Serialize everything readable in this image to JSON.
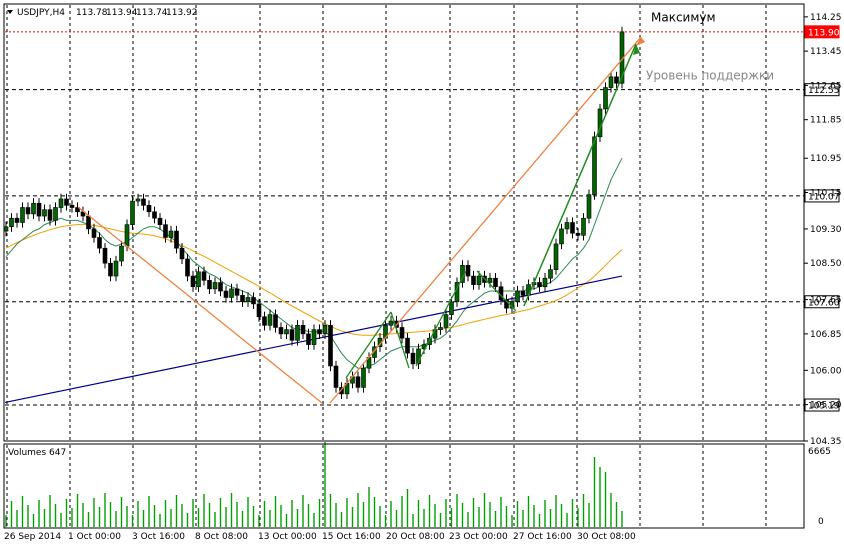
{
  "chart_data": {
    "type": "candlestick",
    "symbol_header": "USDJPY,H4",
    "ohlc_header": [
      "113.78",
      "113.94",
      "113.74",
      "113.92"
    ],
    "volume_label": "Volumes 647",
    "ylim": [
      104.35,
      114.55
    ],
    "y_ticks": [
      "114.25",
      "113.45",
      "112.65",
      "111.85",
      "110.95",
      "110.15",
      "109.30",
      "108.50",
      "107.65",
      "106.85",
      "106.00",
      "105.20",
      "104.35"
    ],
    "price_levels": [
      {
        "value": 113.9,
        "label": "113.90",
        "style": "red-dashed-current"
      },
      {
        "value": 112.55,
        "label": "112.55",
        "style": "black-dashed"
      },
      {
        "value": 110.07,
        "label": "110.07",
        "style": "black-dashed"
      },
      {
        "value": 107.6,
        "label": "107.60",
        "style": "black-dashed"
      },
      {
        "value": 105.19,
        "label": "105.19",
        "style": "black-dashed"
      }
    ],
    "annotations": [
      {
        "text": "Максимум",
        "color": "#000000",
        "at_price": 114.1
      },
      {
        "text": "Уровень поддержки",
        "color": "#888888",
        "at_price": 112.7
      }
    ],
    "x_labels": [
      "26 Sep 2014",
      "1 Oct 00:00",
      "3 Oct 16:00",
      "8 Oct 08:00",
      "13 Oct 00:00",
      "15 Oct 16:00",
      "20 Oct 08:00",
      "23 Oct 00:00",
      "27 Oct 16:00",
      "30 Oct 08:00"
    ],
    "volume_axis": {
      "max": 6665,
      "labels": [
        "6665",
        "0"
      ]
    },
    "closes": [
      109.35,
      109.55,
      109.45,
      109.8,
      109.65,
      109.9,
      109.6,
      109.75,
      109.5,
      109.8,
      110.0,
      109.85,
      109.8,
      109.7,
      109.6,
      109.3,
      109.1,
      108.85,
      108.5,
      108.2,
      108.55,
      108.9,
      109.4,
      109.95,
      110.0,
      109.85,
      109.7,
      109.55,
      109.4,
      109.1,
      109.25,
      108.85,
      108.6,
      108.2,
      107.95,
      108.3,
      108.1,
      107.9,
      108.05,
      107.85,
      107.7,
      107.9,
      107.75,
      107.6,
      107.7,
      107.55,
      107.25,
      107.05,
      107.3,
      107.0,
      106.85,
      106.95,
      106.7,
      107.05,
      106.85,
      106.6,
      106.95,
      106.85,
      107.05,
      106.1,
      105.6,
      105.45,
      105.7,
      105.85,
      105.6,
      106.05,
      106.3,
      106.55,
      106.75,
      107.05,
      107.15,
      107.0,
      106.75,
      106.4,
      106.15,
      106.5,
      106.6,
      106.75,
      106.95,
      107.0,
      107.3,
      107.6,
      108.05,
      108.45,
      108.2,
      108.0,
      108.2,
      108.05,
      108.15,
      107.95,
      107.65,
      107.45,
      107.6,
      107.85,
      107.75,
      108.0,
      108.05,
      107.95,
      108.15,
      108.35,
      108.95,
      109.3,
      109.45,
      109.2,
      109.15,
      109.55,
      110.1,
      111.45,
      112.1,
      112.6,
      112.85,
      112.7,
      113.9
    ],
    "ma_fast": [
      108.65,
      108.8,
      108.95,
      109.05,
      109.15,
      109.25,
      109.3,
      109.4,
      109.45,
      109.5,
      109.55,
      109.5,
      109.5,
      109.5,
      109.45,
      109.4,
      109.3,
      109.2,
      109.05,
      108.95,
      108.9,
      108.95,
      109.0,
      109.1,
      109.2,
      109.3,
      109.35,
      109.35,
      109.3,
      109.2,
      109.1,
      109.0,
      108.85,
      108.7,
      108.55,
      108.45,
      108.35,
      108.25,
      108.2,
      108.1,
      108.0,
      107.95,
      107.9,
      107.85,
      107.8,
      107.7,
      107.6,
      107.5,
      107.4,
      107.3,
      107.2,
      107.1,
      107.0,
      106.95,
      106.95,
      106.9,
      106.9,
      106.9,
      106.9,
      106.8,
      106.6,
      106.4,
      106.25,
      106.15,
      106.05,
      106.05,
      106.1,
      106.15,
      106.25,
      106.35,
      106.45,
      106.5,
      106.55,
      106.55,
      106.55,
      106.55,
      106.6,
      106.65,
      106.7,
      106.75,
      106.85,
      107.0,
      107.15,
      107.35,
      107.5,
      107.6,
      107.7,
      107.8,
      107.85,
      107.85,
      107.85,
      107.85,
      107.85,
      107.85,
      107.85,
      107.9,
      107.9,
      107.95,
      108.0,
      108.05,
      108.15,
      108.3,
      108.45,
      108.6,
      108.7,
      108.85,
      109.05,
      109.4,
      109.75,
      110.1,
      110.45,
      110.7,
      110.95
    ],
    "ma_slow": [
      108.85,
      108.92,
      108.98,
      109.04,
      109.1,
      109.15,
      109.2,
      109.24,
      109.28,
      109.32,
      109.35,
      109.37,
      109.39,
      109.4,
      109.4,
      109.4,
      109.38,
      109.36,
      109.33,
      109.3,
      109.27,
      109.24,
      109.22,
      109.2,
      109.19,
      109.18,
      109.16,
      109.14,
      109.11,
      109.07,
      109.02,
      108.97,
      108.91,
      108.85,
      108.79,
      108.72,
      108.66,
      108.59,
      108.52,
      108.45,
      108.38,
      108.31,
      108.24,
      108.17,
      108.1,
      108.03,
      107.96,
      107.88,
      107.81,
      107.73,
      107.65,
      107.57,
      107.5,
      107.43,
      107.36,
      107.29,
      107.22,
      107.15,
      107.09,
      107.03,
      106.97,
      106.92,
      106.88,
      106.85,
      106.83,
      106.82,
      106.82,
      106.82,
      106.83,
      106.84,
      106.85,
      106.86,
      106.87,
      106.88,
      106.89,
      106.9,
      106.91,
      106.92,
      106.94,
      106.96,
      106.98,
      107.0,
      107.03,
      107.06,
      107.1,
      107.13,
      107.16,
      107.19,
      107.22,
      107.25,
      107.28,
      107.3,
      107.33,
      107.36,
      107.39,
      107.42,
      107.46,
      107.5,
      107.54,
      107.58,
      107.63,
      107.69,
      107.76,
      107.84,
      107.92,
      108.0,
      108.09,
      108.2,
      108.32,
      108.45,
      108.58,
      108.7,
      108.82
    ],
    "ma_long": {
      "from": 105.25,
      "to": 108.2
    }
  },
  "colors": {
    "up_candle": "#006400",
    "ma_fast": "#2e8b57",
    "ma_slow": "#f0a000",
    "ma_long": "#00008b",
    "trend_orange": "#f08040",
    "trend_green": "#228b22",
    "current_price": "#ff0000",
    "volume_bars": "#00a000"
  },
  "icons": {
    "menu_arrow": "dropdown-triangle-icon"
  }
}
